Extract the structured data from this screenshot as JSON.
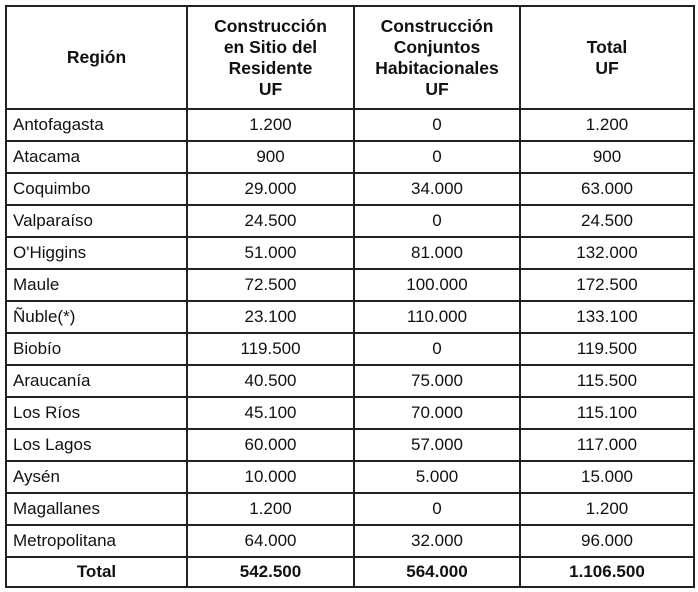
{
  "headers": {
    "region": "Región",
    "sitio": [
      "Construcción",
      "en Sitio del",
      "Residente",
      "UF"
    ],
    "conjuntos": [
      "Construcción",
      "Conjuntos",
      "Habitacionales",
      "UF"
    ],
    "total": [
      "Total",
      "UF"
    ]
  },
  "rows": [
    {
      "region": "Antofagasta",
      "sitio": "1.200",
      "conjuntos": "0",
      "total": "1.200"
    },
    {
      "region": "Atacama",
      "sitio": "900",
      "conjuntos": "0",
      "total": "900"
    },
    {
      "region": "Coquimbo",
      "sitio": "29.000",
      "conjuntos": "34.000",
      "total": "63.000"
    },
    {
      "region": "Valparaíso",
      "sitio": "24.500",
      "conjuntos": "0",
      "total": "24.500"
    },
    {
      "region": "O'Higgins",
      "sitio": "51.000",
      "conjuntos": "81.000",
      "total": "132.000"
    },
    {
      "region": "Maule",
      "sitio": "72.500",
      "conjuntos": "100.000",
      "total": "172.500"
    },
    {
      "region": "Ñuble(*)",
      "sitio": "23.100",
      "conjuntos": "110.000",
      "total": "133.100"
    },
    {
      "region": "Biobío",
      "sitio": "119.500",
      "conjuntos": "0",
      "total": "119.500"
    },
    {
      "region": "Araucanía",
      "sitio": "40.500",
      "conjuntos": "75.000",
      "total": "115.500"
    },
    {
      "region": "Los Ríos",
      "sitio": "45.100",
      "conjuntos": "70.000",
      "total": "115.100"
    },
    {
      "region": "Los Lagos",
      "sitio": "60.000",
      "conjuntos": "57.000",
      "total": "117.000"
    },
    {
      "region": "Aysén",
      "sitio": "10.000",
      "conjuntos": "5.000",
      "total": "15.000"
    },
    {
      "region": "Magallanes",
      "sitio": "1.200",
      "conjuntos": "0",
      "total": "1.200"
    },
    {
      "region": "Metropolitana",
      "sitio": "64.000",
      "conjuntos": "32.000",
      "total": "96.000"
    }
  ],
  "totals": {
    "label": "Total",
    "sitio": "542.500",
    "conjuntos": "564.000",
    "total": "1.106.500"
  }
}
